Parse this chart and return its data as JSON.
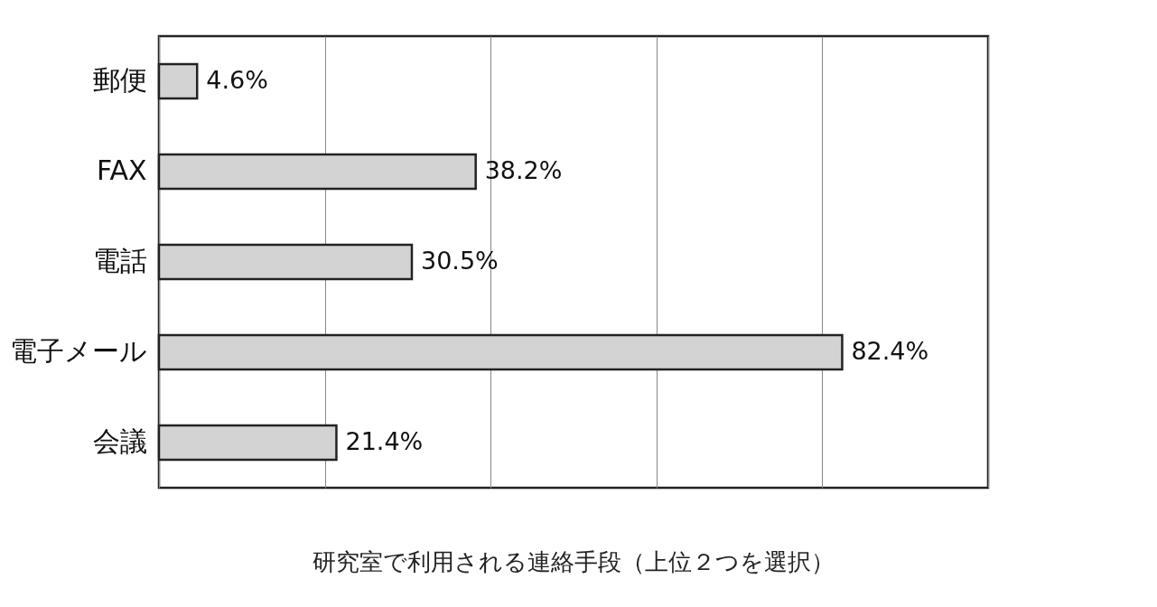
{
  "chart_data": {
    "type": "bar",
    "orientation": "horizontal",
    "title": "研究室で利用される連絡手段（上位２つを選択）",
    "categories": [
      "郵便",
      "FAX",
      "電話",
      "電子メール",
      "会議"
    ],
    "values": [
      4.6,
      38.2,
      30.5,
      82.4,
      21.4
    ],
    "value_labels": [
      "4.6%",
      "38.2%",
      "30.5%",
      "82.4%",
      "21.4%"
    ],
    "color": "#d3d3d3",
    "xlim": [
      0,
      100
    ],
    "xticks": [
      {
        "value": 0,
        "label": null
      },
      {
        "value": 20,
        "label": null
      },
      {
        "value": 40,
        "label": null
      },
      {
        "value": 60,
        "label": null
      },
      {
        "value": 80,
        "label": null
      },
      {
        "value": 100,
        "label": null
      }
    ],
    "grid": "x",
    "tick_labels": "y"
  }
}
